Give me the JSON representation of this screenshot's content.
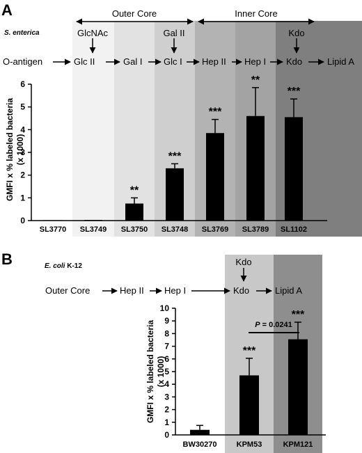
{
  "colors": {
    "bar": "#000000",
    "shade": [
      "#ffffff",
      "#f2f2f2",
      "#e2e2e2",
      "#cfcfcf",
      "#b3b3b3",
      "#a3a3a3",
      "#959595",
      "#7f7f7f"
    ],
    "shade_b": [
      "#ffffff",
      "#c8c8c8",
      "#8e8e8e"
    ]
  },
  "panel_a": {
    "letter": "A",
    "outer_core_label": "Outer Core",
    "inner_core_label": "Inner Core",
    "species": "S. enterica",
    "pathway": [
      "O-antigen",
      "Glc II",
      "Gal I",
      "Glc I",
      "Hep II",
      "Hep I",
      "Kdo",
      "Lipid A"
    ],
    "branches": [
      "GlcNAc",
      "Gal II",
      "Kdo"
    ]
  },
  "panel_b": {
    "letter": "B",
    "species_italic": "E. coli",
    "species_rest": " K-12",
    "pathway": [
      "Outer Core",
      "Hep II",
      "Hep I",
      "Kdo",
      "Lipid A"
    ],
    "branch": "Kdo",
    "pvalue_label": "P",
    "pvalue_value": " = 0.0241"
  },
  "chart_data": [
    {
      "type": "bar",
      "title": "",
      "xlabel": "",
      "ylabel_line1": "GMFI x % labeled bacteria",
      "ylabel_line2": "(x 1000)",
      "ylim": [
        0,
        6
      ],
      "yticks": [
        0,
        1,
        2,
        3,
        4,
        5,
        6
      ],
      "categories": [
        "SL3770",
        "SL3749",
        "SL3750",
        "SL3748",
        "SL3769",
        "SL3789",
        "SL1102"
      ],
      "values": [
        0.02,
        0.03,
        0.75,
        2.3,
        3.85,
        4.6,
        4.55
      ],
      "errors": [
        0,
        0,
        0.25,
        0.2,
        0.6,
        1.25,
        0.8
      ],
      "significance": [
        "",
        "",
        "**",
        "***",
        "***",
        "**",
        "***"
      ]
    },
    {
      "type": "bar",
      "title": "",
      "xlabel": "",
      "ylabel_line1": "GMFI x % labeled bacteria",
      "ylabel_line2": "(x 1000)",
      "ylim": [
        0,
        10
      ],
      "yticks": [
        0,
        1,
        2,
        3,
        4,
        5,
        6,
        7,
        8,
        9,
        10
      ],
      "categories": [
        "BW30270",
        "KPM53",
        "KPM121"
      ],
      "values": [
        0.4,
        4.7,
        7.55
      ],
      "errors": [
        0.35,
        1.35,
        1.35
      ],
      "significance": [
        "",
        "***",
        "***"
      ]
    }
  ]
}
